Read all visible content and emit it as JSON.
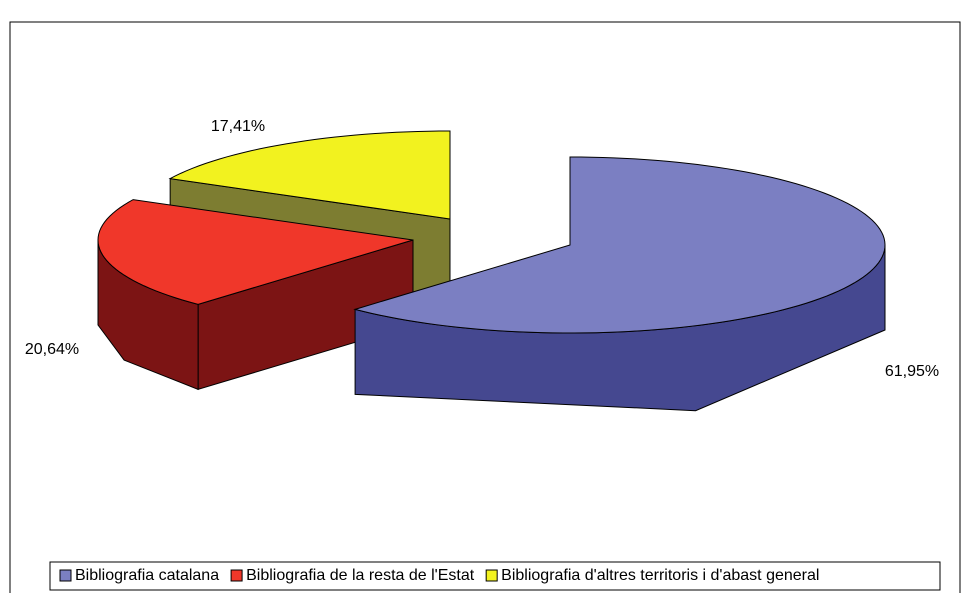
{
  "chart_data": {
    "type": "pie",
    "categories": [
      "Bibliografia catalana",
      "Bibliografia de la resta de l'Estat",
      "Bibliografia d'altres territoris i d'abast general"
    ],
    "values": [
      61.95,
      20.64,
      17.41
    ],
    "value_labels": [
      "61,95%",
      "20,64%",
      "17,41%"
    ],
    "colors": [
      "#7b7fc2",
      "#f0372a",
      "#f2f21f"
    ],
    "side_colors": [
      "#454890",
      "#7c1414",
      "#7d7d31"
    ],
    "legend": "bottom"
  }
}
